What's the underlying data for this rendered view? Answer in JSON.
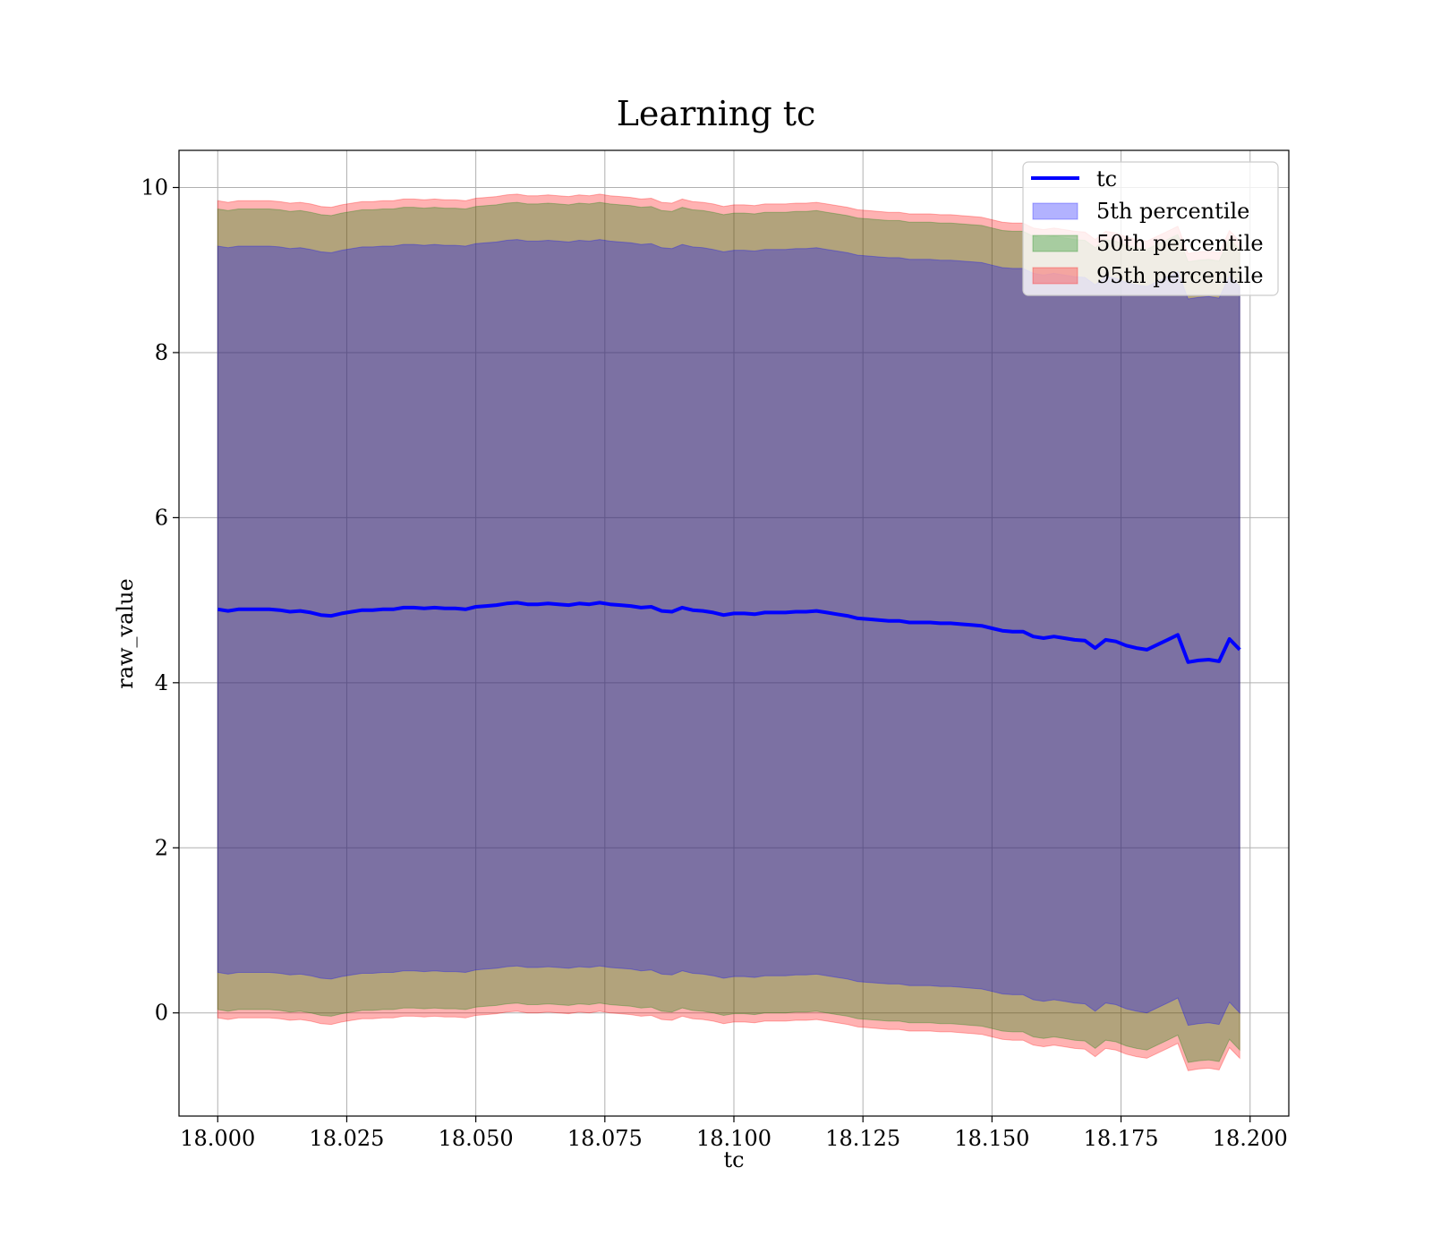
{
  "chart_data": {
    "type": "area",
    "title": "Learning tc",
    "xlabel": "tc",
    "ylabel": "raw_value",
    "xlim": [
      17.9925,
      18.2075
    ],
    "ylim": [
      -1.25,
      10.45
    ],
    "xticks": [
      18.0,
      18.025,
      18.05,
      18.075,
      18.1,
      18.125,
      18.15,
      18.175,
      18.2
    ],
    "xtick_labels": [
      "18.000",
      "18.025",
      "18.050",
      "18.075",
      "18.100",
      "18.125",
      "18.150",
      "18.175",
      "18.200"
    ],
    "yticks": [
      0,
      2,
      4,
      6,
      8,
      10
    ],
    "ytick_labels": [
      "0",
      "2",
      "4",
      "6",
      "8",
      "10"
    ],
    "grid": true,
    "legend_position": "top-right",
    "colors": {
      "line": "#0000ff",
      "p5": "#0000ff",
      "p50": "#008000",
      "p95": "#ff0000",
      "grid": "#b0b0b0"
    },
    "x": [
      18.0,
      18.002,
      18.004,
      18.006,
      18.008,
      18.01,
      18.012,
      18.014,
      18.016,
      18.018,
      18.02,
      18.022,
      18.024,
      18.026,
      18.028,
      18.03,
      18.032,
      18.034,
      18.036,
      18.038,
      18.04,
      18.042,
      18.044,
      18.046,
      18.048,
      18.05,
      18.052,
      18.054,
      18.056,
      18.058,
      18.06,
      18.062,
      18.064,
      18.066,
      18.068,
      18.07,
      18.072,
      18.074,
      18.076,
      18.078,
      18.08,
      18.082,
      18.084,
      18.086,
      18.088,
      18.09,
      18.092,
      18.094,
      18.096,
      18.098,
      18.1,
      18.102,
      18.104,
      18.106,
      18.108,
      18.11,
      18.112,
      18.114,
      18.116,
      18.118,
      18.12,
      18.122,
      18.124,
      18.126,
      18.128,
      18.13,
      18.132,
      18.134,
      18.136,
      18.138,
      18.14,
      18.142,
      18.144,
      18.146,
      18.148,
      18.15,
      18.152,
      18.154,
      18.156,
      18.158,
      18.16,
      18.162,
      18.164,
      18.166,
      18.168,
      18.17,
      18.172,
      18.174,
      18.176,
      18.178,
      18.18,
      18.182,
      18.184,
      18.186,
      18.188,
      18.19,
      18.192,
      18.194,
      18.196,
      18.198
    ],
    "series": [
      {
        "name": "tc",
        "values": [
          4.89,
          4.87,
          4.89,
          4.89,
          4.89,
          4.89,
          4.88,
          4.86,
          4.87,
          4.85,
          4.82,
          4.81,
          4.84,
          4.86,
          4.88,
          4.88,
          4.89,
          4.89,
          4.91,
          4.91,
          4.9,
          4.91,
          4.9,
          4.9,
          4.89,
          4.92,
          4.93,
          4.94,
          4.96,
          4.97,
          4.95,
          4.95,
          4.96,
          4.95,
          4.94,
          4.96,
          4.95,
          4.97,
          4.95,
          4.94,
          4.93,
          4.91,
          4.92,
          4.87,
          4.86,
          4.91,
          4.88,
          4.87,
          4.85,
          4.82,
          4.84,
          4.84,
          4.83,
          4.85,
          4.85,
          4.85,
          4.86,
          4.86,
          4.87,
          4.85,
          4.83,
          4.81,
          4.78,
          4.77,
          4.76,
          4.75,
          4.75,
          4.73,
          4.73,
          4.73,
          4.72,
          4.72,
          4.71,
          4.7,
          4.69,
          4.66,
          4.63,
          4.62,
          4.62,
          4.56,
          4.54,
          4.56,
          4.54,
          4.52,
          4.51,
          4.42,
          4.52,
          4.5,
          4.45,
          4.42,
          4.4,
          4.46,
          4.52,
          4.58,
          4.25,
          4.27,
          4.28,
          4.26,
          4.53,
          4.4
        ]
      },
      {
        "name": "5th percentile",
        "spread": 4.4
      },
      {
        "name": "50th percentile",
        "spread": 4.85
      },
      {
        "name": "95th percentile",
        "spread": 4.95
      }
    ]
  }
}
